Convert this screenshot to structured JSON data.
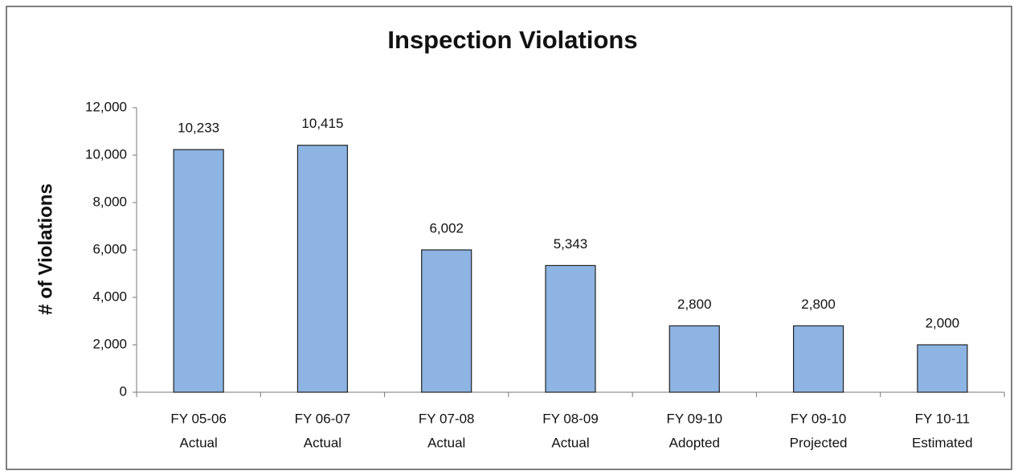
{
  "chart_data": {
    "type": "bar",
    "title": "Inspection Violations",
    "y_label": "# of Violations",
    "categories": [
      [
        "FY 05-06",
        "Actual"
      ],
      [
        "FY 06-07",
        "Actual"
      ],
      [
        "FY 07-08",
        "Actual"
      ],
      [
        "FY 08-09",
        "Actual"
      ],
      [
        "FY 09-10",
        "Adopted"
      ],
      [
        "FY 09-10",
        "Projected"
      ],
      [
        "FY 10-11",
        "Estimated"
      ]
    ],
    "values": [
      10233,
      10415,
      6002,
      5343,
      2800,
      2800,
      2000
    ],
    "value_labels": [
      "10,233",
      "10,415",
      "6,002",
      "5,343",
      "2,800",
      "2,800",
      "2,000"
    ],
    "color": "#8db4e2",
    "ylim": [
      0,
      12000
    ],
    "yticks": [
      0,
      {
        "value": 2000,
        "label": "2,000"
      },
      {
        "value": 4000,
        "label": "4,000"
      },
      {
        "value": 6000,
        "label": "6,000"
      },
      {
        "value": 8000,
        "label": "8,000"
      },
      {
        "value": 10000,
        "label": "10,000"
      },
      {
        "value": 12000,
        "label": "12,000"
      }
    ],
    "grid": false
  }
}
